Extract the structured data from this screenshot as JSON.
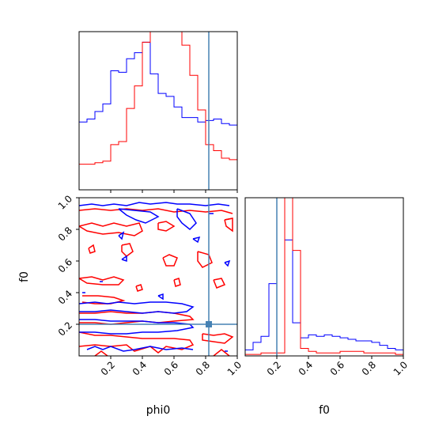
{
  "chart_data": {
    "type": "corner",
    "parameters": [
      "phi0",
      "f0"
    ],
    "truth": {
      "phi0": 0.82,
      "f0": 0.2
    },
    "colors": {
      "series_a": "#0000ff",
      "series_b": "#ff0000",
      "truth": "#4682b4"
    },
    "histograms": {
      "phi0": {
        "range": [
          0,
          1
        ],
        "bin_edges": [
          0.0,
          0.05,
          0.1,
          0.15,
          0.2,
          0.25,
          0.3,
          0.35,
          0.4,
          0.45,
          0.5,
          0.55,
          0.6,
          0.65,
          0.7,
          0.75,
          0.8,
          0.85,
          0.9,
          0.95,
          1.0
        ],
        "series_a": [
          0.45,
          0.47,
          0.52,
          0.57,
          0.79,
          0.78,
          0.87,
          0.91,
          0.98,
          0.77,
          0.64,
          0.62,
          0.55,
          0.48,
          0.48,
          0.45,
          0.46,
          0.47,
          0.44,
          0.43
        ],
        "series_b": [
          0.17,
          0.17,
          0.18,
          0.19,
          0.3,
          0.32,
          0.54,
          0.69,
          0.98,
          1.4,
          1.65,
          1.35,
          1.15,
          0.96,
          0.76,
          0.53,
          0.3,
          0.26,
          0.21,
          0.2
        ]
      },
      "f0": {
        "range": [
          0,
          1
        ],
        "bin_edges": [
          0.0,
          0.05,
          0.1,
          0.15,
          0.2,
          0.25,
          0.3,
          0.35,
          0.4,
          0.45,
          0.5,
          0.55,
          0.6,
          0.65,
          0.7,
          0.75,
          0.8,
          0.85,
          0.9,
          0.95,
          1.0
        ],
        "series_a": [
          0.04,
          0.09,
          0.13,
          0.48,
          1.05,
          0.77,
          0.22,
          0.12,
          0.14,
          0.13,
          0.14,
          0.13,
          0.12,
          0.11,
          0.1,
          0.1,
          0.09,
          0.07,
          0.05,
          0.04
        ],
        "series_b": [
          0.01,
          0.01,
          0.02,
          0.02,
          0.02,
          1.1,
          0.7,
          0.05,
          0.03,
          0.02,
          0.02,
          0.02,
          0.03,
          0.03,
          0.03,
          0.02,
          0.02,
          0.02,
          0.02,
          0.01
        ]
      }
    },
    "joint": {
      "x_param": "phi0",
      "y_param": "f0",
      "xlim": [
        0,
        1
      ],
      "ylim": [
        0,
        1
      ],
      "series_a_contours": [
        [
          [
            0.0,
            0.95
          ],
          [
            0.08,
            0.96
          ],
          [
            0.15,
            0.95
          ],
          [
            0.22,
            0.96
          ],
          [
            0.3,
            0.95
          ],
          [
            0.38,
            0.97
          ],
          [
            0.45,
            0.96
          ],
          [
            0.55,
            0.97
          ],
          [
            0.62,
            0.96
          ],
          [
            0.7,
            0.96
          ],
          [
            0.8,
            0.95
          ],
          [
            0.88,
            0.96
          ],
          [
            0.95,
            0.95
          ]
        ],
        [
          [
            0.25,
            0.93
          ],
          [
            0.35,
            0.92
          ],
          [
            0.45,
            0.91
          ],
          [
            0.5,
            0.88
          ],
          [
            0.42,
            0.84
          ],
          [
            0.36,
            0.86
          ],
          [
            0.3,
            0.89
          ],
          [
            0.25,
            0.93
          ]
        ],
        [
          [
            0.62,
            0.93
          ],
          [
            0.7,
            0.9
          ],
          [
            0.74,
            0.84
          ],
          [
            0.7,
            0.8
          ],
          [
            0.65,
            0.84
          ],
          [
            0.62,
            0.88
          ],
          [
            0.62,
            0.93
          ]
        ],
        [
          [
            0.25,
            0.76
          ],
          [
            0.28,
            0.78
          ],
          [
            0.27,
            0.74
          ],
          [
            0.25,
            0.76
          ]
        ],
        [
          [
            0.72,
            0.74
          ],
          [
            0.76,
            0.75
          ],
          [
            0.75,
            0.72
          ],
          [
            0.72,
            0.74
          ]
        ],
        [
          [
            0.27,
            0.61
          ],
          [
            0.3,
            0.63
          ],
          [
            0.3,
            0.6
          ],
          [
            0.27,
            0.61
          ]
        ],
        [
          [
            0.92,
            0.59
          ],
          [
            0.95,
            0.6
          ],
          [
            0.94,
            0.57
          ],
          [
            0.92,
            0.59
          ]
        ],
        [
          [
            0.5,
            0.38
          ],
          [
            0.53,
            0.39
          ],
          [
            0.53,
            0.36
          ],
          [
            0.5,
            0.38
          ]
        ],
        [
          [
            0.0,
            0.33
          ],
          [
            0.1,
            0.34
          ],
          [
            0.18,
            0.33
          ],
          [
            0.25,
            0.34
          ],
          [
            0.35,
            0.33
          ],
          [
            0.45,
            0.34
          ],
          [
            0.55,
            0.34
          ],
          [
            0.65,
            0.33
          ],
          [
            0.72,
            0.31
          ],
          [
            0.68,
            0.28
          ],
          [
            0.6,
            0.27
          ],
          [
            0.5,
            0.28
          ],
          [
            0.4,
            0.27
          ],
          [
            0.3,
            0.28
          ],
          [
            0.2,
            0.29
          ],
          [
            0.1,
            0.28
          ],
          [
            0.0,
            0.28
          ]
        ],
        [
          [
            0.0,
            0.23
          ],
          [
            0.1,
            0.23
          ],
          [
            0.2,
            0.22
          ],
          [
            0.3,
            0.22
          ],
          [
            0.4,
            0.22
          ],
          [
            0.5,
            0.21
          ],
          [
            0.6,
            0.21
          ],
          [
            0.7,
            0.2
          ],
          [
            0.72,
            0.18
          ],
          [
            0.62,
            0.16
          ],
          [
            0.5,
            0.15
          ],
          [
            0.4,
            0.15
          ],
          [
            0.3,
            0.14
          ],
          [
            0.2,
            0.14
          ],
          [
            0.1,
            0.15
          ],
          [
            0.0,
            0.15
          ]
        ],
        [
          [
            0.05,
            0.04
          ],
          [
            0.1,
            0.06
          ],
          [
            0.15,
            0.04
          ],
          [
            0.2,
            0.06
          ],
          [
            0.28,
            0.03
          ],
          [
            0.35,
            0.04
          ],
          [
            0.45,
            0.06
          ],
          [
            0.55,
            0.04
          ],
          [
            0.65,
            0.05
          ],
          [
            0.72,
            0.04
          ]
        ],
        [
          [
            0.02,
            0.4
          ],
          [
            0.04,
            0.4
          ]
        ],
        [
          [
            0.13,
            0.47
          ],
          [
            0.15,
            0.47
          ]
        ],
        [
          [
            0.82,
            0.9
          ],
          [
            0.85,
            0.9
          ]
        ],
        [
          [
            0.92,
            0.03
          ],
          [
            0.94,
            0.03
          ]
        ]
      ],
      "series_b_contours": [
        [
          [
            0.0,
            0.92
          ],
          [
            0.1,
            0.93
          ],
          [
            0.2,
            0.92
          ],
          [
            0.3,
            0.93
          ],
          [
            0.4,
            0.92
          ],
          [
            0.5,
            0.93
          ],
          [
            0.6,
            0.91
          ],
          [
            0.7,
            0.92
          ],
          [
            0.8,
            0.91
          ],
          [
            0.9,
            0.92
          ],
          [
            0.97,
            0.9
          ]
        ],
        [
          [
            0.0,
            0.82
          ],
          [
            0.08,
            0.84
          ],
          [
            0.15,
            0.82
          ],
          [
            0.22,
            0.84
          ],
          [
            0.3,
            0.82
          ],
          [
            0.38,
            0.84
          ],
          [
            0.4,
            0.79
          ],
          [
            0.35,
            0.76
          ],
          [
            0.25,
            0.78
          ],
          [
            0.15,
            0.77
          ],
          [
            0.05,
            0.79
          ],
          [
            0.0,
            0.82
          ]
        ],
        [
          [
            0.5,
            0.84
          ],
          [
            0.55,
            0.85
          ],
          [
            0.6,
            0.82
          ],
          [
            0.55,
            0.79
          ],
          [
            0.5,
            0.8
          ],
          [
            0.5,
            0.84
          ]
        ],
        [
          [
            0.92,
            0.86
          ],
          [
            0.97,
            0.87
          ],
          [
            0.97,
            0.79
          ],
          [
            0.93,
            0.82
          ],
          [
            0.92,
            0.86
          ]
        ],
        [
          [
            0.06,
            0.68
          ],
          [
            0.09,
            0.7
          ],
          [
            0.1,
            0.66
          ],
          [
            0.07,
            0.65
          ],
          [
            0.06,
            0.68
          ]
        ],
        [
          [
            0.27,
            0.7
          ],
          [
            0.32,
            0.71
          ],
          [
            0.34,
            0.66
          ],
          [
            0.3,
            0.63
          ],
          [
            0.27,
            0.66
          ],
          [
            0.27,
            0.7
          ]
        ],
        [
          [
            0.53,
            0.62
          ],
          [
            0.57,
            0.64
          ],
          [
            0.62,
            0.62
          ],
          [
            0.6,
            0.57
          ],
          [
            0.55,
            0.57
          ],
          [
            0.53,
            0.62
          ]
        ],
        [
          [
            0.75,
            0.66
          ],
          [
            0.82,
            0.64
          ],
          [
            0.84,
            0.59
          ],
          [
            0.78,
            0.56
          ],
          [
            0.75,
            0.6
          ],
          [
            0.75,
            0.66
          ]
        ],
        [
          [
            0.92,
            0.86
          ],
          [
            0.97,
            0.87
          ]
        ],
        [
          [
            0.0,
            0.49
          ],
          [
            0.08,
            0.5
          ],
          [
            0.15,
            0.48
          ],
          [
            0.22,
            0.5
          ],
          [
            0.28,
            0.48
          ],
          [
            0.25,
            0.45
          ],
          [
            0.15,
            0.45
          ],
          [
            0.05,
            0.46
          ],
          [
            0.0,
            0.49
          ]
        ],
        [
          [
            0.36,
            0.44
          ],
          [
            0.39,
            0.45
          ],
          [
            0.4,
            0.42
          ],
          [
            0.37,
            0.41
          ],
          [
            0.36,
            0.44
          ]
        ],
        [
          [
            0.6,
            0.48
          ],
          [
            0.63,
            0.49
          ],
          [
            0.64,
            0.45
          ],
          [
            0.61,
            0.44
          ],
          [
            0.6,
            0.48
          ]
        ],
        [
          [
            0.85,
            0.48
          ],
          [
            0.9,
            0.49
          ],
          [
            0.92,
            0.45
          ],
          [
            0.87,
            0.43
          ],
          [
            0.85,
            0.48
          ]
        ],
        [
          [
            0.02,
            0.38
          ],
          [
            0.12,
            0.38
          ],
          [
            0.22,
            0.37
          ],
          [
            0.28,
            0.35
          ],
          [
            0.2,
            0.33
          ],
          [
            0.1,
            0.33
          ],
          [
            0.02,
            0.34
          ]
        ],
        [
          [
            0.0,
            0.27
          ],
          [
            0.1,
            0.27
          ],
          [
            0.2,
            0.28
          ],
          [
            0.3,
            0.27
          ],
          [
            0.4,
            0.27
          ],
          [
            0.5,
            0.28
          ],
          [
            0.6,
            0.27
          ],
          [
            0.7,
            0.25
          ],
          [
            0.72,
            0.23
          ],
          [
            0.6,
            0.22
          ],
          [
            0.5,
            0.21
          ],
          [
            0.4,
            0.22
          ],
          [
            0.3,
            0.21
          ],
          [
            0.2,
            0.2
          ],
          [
            0.1,
            0.21
          ],
          [
            0.0,
            0.21
          ]
        ],
        [
          [
            0.0,
            0.15
          ],
          [
            0.1,
            0.13
          ],
          [
            0.2,
            0.13
          ],
          [
            0.3,
            0.12
          ],
          [
            0.4,
            0.11
          ],
          [
            0.5,
            0.11
          ],
          [
            0.6,
            0.11
          ],
          [
            0.7,
            0.1
          ],
          [
            0.72,
            0.07
          ],
          [
            0.65,
            0.04
          ],
          [
            0.55,
            0.06
          ],
          [
            0.5,
            0.02
          ],
          [
            0.45,
            0.06
          ],
          [
            0.35,
            0.03
          ],
          [
            0.3,
            0.07
          ],
          [
            0.2,
            0.06
          ],
          [
            0.1,
            0.07
          ],
          [
            0.0,
            0.06
          ]
        ],
        [
          [
            0.78,
            0.14
          ],
          [
            0.85,
            0.13
          ],
          [
            0.92,
            0.14
          ],
          [
            0.97,
            0.12
          ],
          [
            0.92,
            0.08
          ],
          [
            0.85,
            0.09
          ],
          [
            0.78,
            0.1
          ],
          [
            0.78,
            0.14
          ]
        ],
        [
          [
            0.1,
            0.0
          ],
          [
            0.14,
            0.03
          ],
          [
            0.18,
            0.0
          ]
        ],
        [
          [
            0.85,
            0.0
          ],
          [
            0.9,
            0.04
          ],
          [
            0.95,
            0.0
          ]
        ]
      ]
    },
    "xticks": [
      "0.2",
      "0.4",
      "0.6",
      "0.8",
      "1.0"
    ],
    "yticks": [
      "0.2",
      "0.4",
      "0.6",
      "0.8",
      "1.0"
    ],
    "xlabels": [
      "phi0",
      "f0"
    ],
    "ylabel": "f0"
  }
}
